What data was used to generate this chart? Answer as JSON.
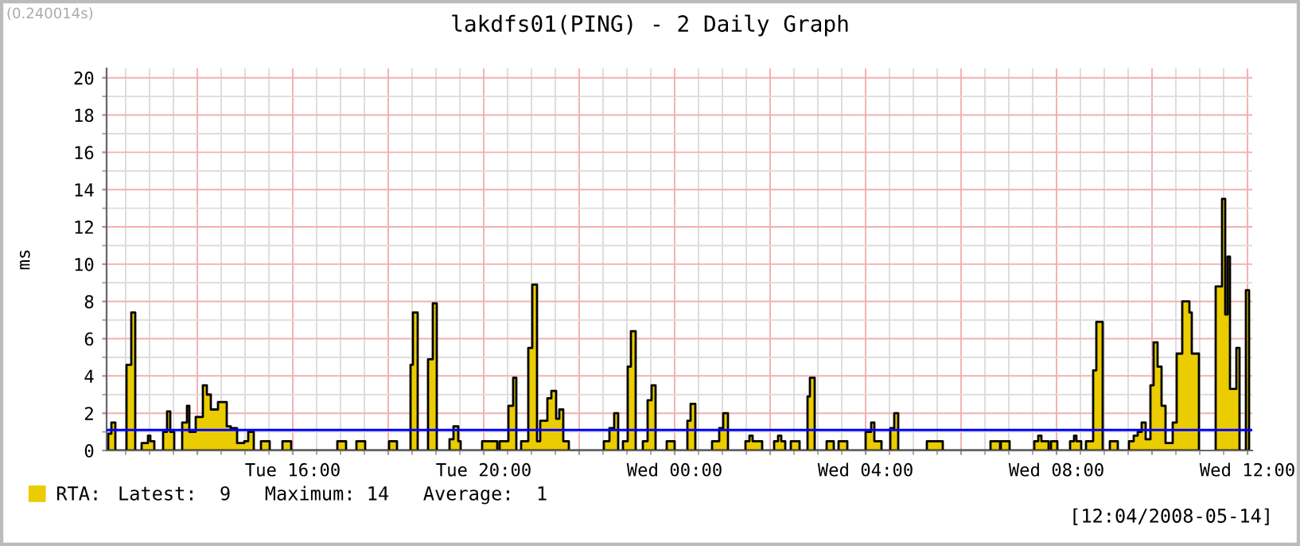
{
  "chart_data": {
    "type": "area",
    "title": "lakdfs01(PING) - 2 Daily Graph",
    "ylabel": "ms",
    "xlim": [
      "2008-05-13T12:06",
      "2008-05-14T12:06"
    ],
    "xticks": [
      {
        "value": "2008-05-13T14:00",
        "label": null
      },
      {
        "value": "2008-05-13T16:00",
        "label": "Tue 16:00"
      },
      {
        "value": "2008-05-13T18:00",
        "label": null
      },
      {
        "value": "2008-05-13T20:00",
        "label": "Tue 20:00"
      },
      {
        "value": "2008-05-13T22:00",
        "label": null
      },
      {
        "value": "2008-05-14T00:00",
        "label": "Wed 00:00"
      },
      {
        "value": "2008-05-14T02:00",
        "label": null
      },
      {
        "value": "2008-05-14T04:00",
        "label": "Wed 04:00"
      },
      {
        "value": "2008-05-14T06:00",
        "label": null
      },
      {
        "value": "2008-05-14T08:00",
        "label": "Wed 08:00"
      },
      {
        "value": "2008-05-14T10:00",
        "label": null
      },
      {
        "value": "2008-05-14T12:00",
        "label": "Wed 12:00"
      }
    ],
    "ylim": [
      0,
      20.5
    ],
    "yticks": [
      0,
      2,
      4,
      6,
      8,
      10,
      12,
      14,
      16,
      18,
      20
    ],
    "grid": true,
    "legend": "bottom left",
    "series": [
      {
        "name": "RTA:",
        "color": "#eacc00",
        "x": [
          "2008-05-13T12:08",
          "2008-05-13T12:12",
          "2008-05-13T12:17",
          "2008-05-13T12:31",
          "2008-05-13T12:37",
          "2008-05-13T12:42",
          "2008-05-13T12:50",
          "2008-05-13T12:58",
          "2008-05-13T13:01",
          "2008-05-13T13:06",
          "2008-05-13T13:17",
          "2008-05-13T13:22",
          "2008-05-13T13:26",
          "2008-05-13T13:31",
          "2008-05-13T13:41",
          "2008-05-13T13:47",
          "2008-05-13T13:50",
          "2008-05-13T13:58",
          "2008-05-13T14:07",
          "2008-05-13T14:12",
          "2008-05-13T14:17",
          "2008-05-13T14:26",
          "2008-05-13T14:37",
          "2008-05-13T14:42",
          "2008-05-13T14:50",
          "2008-05-13T14:59",
          "2008-05-13T15:04",
          "2008-05-13T15:11",
          "2008-05-13T15:20",
          "2008-05-13T15:31",
          "2008-05-13T15:47",
          "2008-05-13T15:58",
          "2008-05-13T16:56",
          "2008-05-13T17:07",
          "2008-05-13T17:20",
          "2008-05-13T17:31",
          "2008-05-13T18:01",
          "2008-05-13T18:11",
          "2008-05-13T18:28",
          "2008-05-13T18:31",
          "2008-05-13T18:37",
          "2008-05-13T18:50",
          "2008-05-13T18:56",
          "2008-05-13T19:01",
          "2008-05-13T19:17",
          "2008-05-13T19:22",
          "2008-05-13T19:28",
          "2008-05-13T19:31",
          "2008-05-13T19:58",
          "2008-05-13T20:17",
          "2008-05-13T20:20",
          "2008-05-13T20:31",
          "2008-05-13T20:37",
          "2008-05-13T20:41",
          "2008-05-13T20:47",
          "2008-05-13T20:56",
          "2008-05-13T21:01",
          "2008-05-13T21:07",
          "2008-05-13T21:11",
          "2008-05-13T21:20",
          "2008-05-13T21:25",
          "2008-05-13T21:31",
          "2008-05-13T21:35",
          "2008-05-13T21:40",
          "2008-05-13T21:47",
          "2008-05-13T22:31",
          "2008-05-13T22:38",
          "2008-05-13T22:44",
          "2008-05-13T22:49",
          "2008-05-13T22:55",
          "2008-05-13T23:01",
          "2008-05-13T23:05",
          "2008-05-13T23:11",
          "2008-05-13T23:20",
          "2008-05-13T23:26",
          "2008-05-13T23:31",
          "2008-05-13T23:36",
          "2008-05-13T23:50",
          "2008-05-14T00:00",
          "2008-05-14T00:16",
          "2008-05-14T00:20",
          "2008-05-14T00:26",
          "2008-05-14T00:47",
          "2008-05-14T00:56",
          "2008-05-14T01:01",
          "2008-05-14T01:07",
          "2008-05-14T01:29",
          "2008-05-14T01:34",
          "2008-05-14T01:38",
          "2008-05-14T01:50",
          "2008-05-14T02:05",
          "2008-05-14T02:10",
          "2008-05-14T02:14",
          "2008-05-14T02:19",
          "2008-05-14T02:26",
          "2008-05-14T02:37",
          "2008-05-14T02:47",
          "2008-05-14T02:50",
          "2008-05-14T02:56",
          "2008-05-14T03:11",
          "2008-05-14T03:20",
          "2008-05-14T03:26",
          "2008-05-14T03:37",
          "2008-05-14T04:00",
          "2008-05-14T04:07",
          "2008-05-14T04:11",
          "2008-05-14T04:20",
          "2008-05-14T04:31",
          "2008-05-14T04:36",
          "2008-05-14T04:41",
          "2008-05-14T05:17",
          "2008-05-14T05:37",
          "2008-05-14T06:37",
          "2008-05-14T06:49",
          "2008-05-14T06:50",
          "2008-05-14T07:01",
          "2008-05-14T07:32",
          "2008-05-14T07:37",
          "2008-05-14T07:41",
          "2008-05-14T07:50",
          "2008-05-14T07:53",
          "2008-05-14T08:01",
          "2008-05-14T08:17",
          "2008-05-14T08:22",
          "2008-05-14T08:25",
          "2008-05-14T08:31",
          "2008-05-14T08:37",
          "2008-05-14T08:46",
          "2008-05-14T08:50",
          "2008-05-14T08:58",
          "2008-05-14T09:07",
          "2008-05-14T09:17",
          "2008-05-14T09:31",
          "2008-05-14T09:37",
          "2008-05-14T09:42",
          "2008-05-14T09:47",
          "2008-05-14T09:52",
          "2008-05-14T09:58",
          "2008-05-14T10:02",
          "2008-05-14T10:07",
          "2008-05-14T10:12",
          "2008-05-14T10:17",
          "2008-05-14T10:26",
          "2008-05-14T10:31",
          "2008-05-14T10:38",
          "2008-05-14T10:47",
          "2008-05-14T10:50",
          "2008-05-14T10:59",
          "2008-05-14T11:00",
          "2008-05-14T11:20",
          "2008-05-14T11:28",
          "2008-05-14T11:32",
          "2008-05-14T11:35",
          "2008-05-14T11:38",
          "2008-05-14T11:46",
          "2008-05-14T11:50",
          "2008-05-14T11:58",
          "2008-05-14T12:02"
        ],
        "values": [
          0.9,
          1.5,
          0,
          4.6,
          7.4,
          0,
          0.4,
          0.8,
          0.5,
          0,
          1.0,
          2.1,
          1.0,
          0,
          1.5,
          2.4,
          1.0,
          1.8,
          3.5,
          3.0,
          2.2,
          2.6,
          1.3,
          1.2,
          0.4,
          0.5,
          1.0,
          0,
          0.5,
          0,
          0.5,
          0,
          0.5,
          0,
          0.5,
          0,
          0.5,
          0,
          4.6,
          7.4,
          0,
          4.9,
          7.9,
          0,
          0.6,
          1.3,
          0.5,
          0,
          0.5,
          0,
          0.5,
          2.4,
          3.9,
          0,
          0.5,
          5.5,
          8.9,
          0.5,
          1.6,
          2.8,
          3.2,
          1.7,
          2.2,
          0.5,
          0,
          0.5,
          1.2,
          2.0,
          0,
          0.5,
          4.5,
          6.4,
          0,
          0.5,
          2.7,
          3.5,
          0,
          0.5,
          0,
          1.6,
          2.5,
          0,
          0.5,
          1.2,
          2.0,
          0,
          0.5,
          0.8,
          0.5,
          0,
          0.5,
          0.8,
          0.5,
          0,
          0.5,
          0,
          2.9,
          3.9,
          0,
          0.5,
          0,
          0.5,
          0,
          1.0,
          1.5,
          0.5,
          0,
          1.2,
          2.0,
          0,
          0.5,
          0,
          0.5,
          0,
          0.5,
          0,
          0.5,
          0.8,
          0.5,
          0,
          0.5,
          0,
          0.5,
          0.8,
          0.5,
          0,
          0.5,
          4.3,
          6.9,
          0,
          0.5,
          0,
          0.5,
          0.8,
          1.0,
          1.5,
          0.6,
          3.5,
          5.8,
          4.5,
          2.4,
          0.4,
          1.5,
          5.2,
          8.0,
          7.4,
          5.2,
          3.8,
          null,
          8.8,
          13.5,
          7.3,
          10.4,
          3.3,
          5.5,
          0,
          8.6,
          8.6
        ]
      }
    ],
    "ref_lines": [
      {
        "axis": "y",
        "value": 1.1,
        "color": "#0000ff"
      }
    ],
    "annotations": [
      "(0.240014s)",
      "Latest:  9   Maximum: 14   Average:  1",
      "[12:04/2008-05-14]"
    ]
  }
}
